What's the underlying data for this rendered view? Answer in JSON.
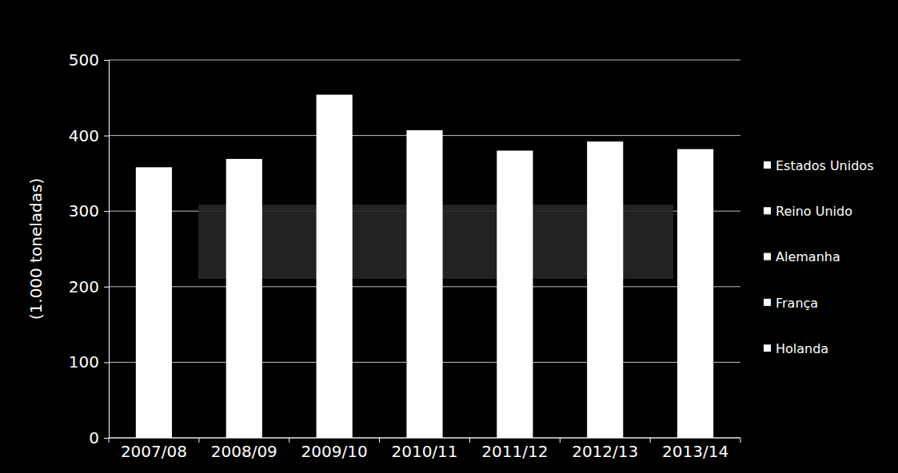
{
  "chart_data": {
    "type": "bar",
    "y_label": "(1.000 toneladas)",
    "categories": [
      "2007/08",
      "2008/09",
      "2009/10",
      "2010/11",
      "2011/12",
      "2012/13",
      "2013/14"
    ],
    "series": [
      {
        "name": "Estados Unidos",
        "color": "#ffffff",
        "values": [
          358,
          369,
          454,
          407,
          380,
          392,
          382
        ]
      },
      {
        "name": "Reino Unido",
        "color": "#ffffff",
        "values": [
          null,
          null,
          null,
          null,
          null,
          null,
          null
        ]
      },
      {
        "name": "Alemanha",
        "color": "#ffffff",
        "values": [
          null,
          null,
          null,
          null,
          null,
          null,
          null
        ]
      },
      {
        "name": "França",
        "color": "#ffffff",
        "values": [
          null,
          null,
          null,
          null,
          null,
          null,
          null
        ]
      },
      {
        "name": "Holanda",
        "color": "#ffffff",
        "values": [
          null,
          null,
          null,
          null,
          null,
          null,
          null
        ]
      }
    ],
    "ylim": [
      0,
      500
    ],
    "yticks": [
      0,
      100,
      200,
      300,
      400,
      500
    ],
    "grid": true,
    "legend": "right"
  }
}
